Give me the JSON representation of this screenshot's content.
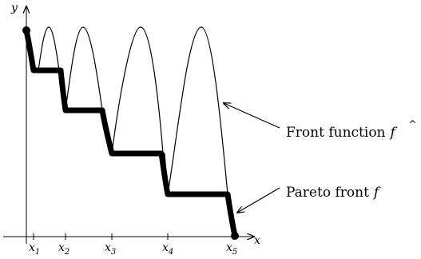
{
  "axes": {
    "x_label": "x",
    "y_label": "y"
  },
  "ticks": [
    {
      "label": "x",
      "sub": "1"
    },
    {
      "label": "x",
      "sub": "2"
    },
    {
      "label": "x",
      "sub": "3"
    },
    {
      "label": "x",
      "sub": "4"
    },
    {
      "label": "x",
      "sub": "5"
    }
  ],
  "annotations": {
    "front_function": {
      "text": "Front function",
      "symbol": "f",
      "hat": "^"
    },
    "pareto_front": {
      "text": "Pareto front",
      "symbol": "f"
    }
  },
  "colors": {
    "stroke": "#000000",
    "background": "#ffffff"
  }
}
